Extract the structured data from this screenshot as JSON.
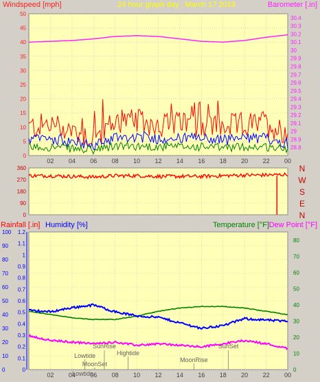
{
  "header": {
    "left_title": "Windspeed [mph]",
    "center_title": "24 hour graph day : March 17 2019",
    "right_title": "Barometer [.in]"
  },
  "colors": {
    "window_bg": "#d4d0c8",
    "plot_bg": "#ffffb8",
    "grid": "#c0c0c0",
    "wind_axis": "#ff2020",
    "baro_axis": "#ff20ff",
    "title": "#ffff00",
    "gust": "#ff0000",
    "avg": "#0000ff",
    "low": "#008000",
    "humidity": "#0000ff",
    "temperature": "#008000",
    "dew": "#ff00ff",
    "direction_axis": "#cc0000"
  },
  "time_axis": [
    "02",
    "04",
    "06",
    "08",
    "10",
    "12",
    "14",
    "16",
    "18",
    "20",
    "22",
    "00"
  ],
  "panel_wind": {
    "left_ticks": [
      "50",
      "45",
      "40",
      "35",
      "30",
      "25",
      "20",
      "15",
      "10",
      "5",
      "0"
    ],
    "right_ticks": [
      "30.4",
      "30.3",
      "30.2",
      "30.1",
      "30",
      "29.9",
      "29.8",
      "29.7",
      "29.6",
      "29.5",
      "29.4",
      "29.3",
      "29.2",
      "29.1",
      "29",
      "28.9",
      "28.8"
    ]
  },
  "panel_dir": {
    "ticks": [
      "360",
      "270",
      "180",
      "90",
      "0"
    ],
    "compass": [
      "N",
      "W",
      "S",
      "E",
      "N"
    ]
  },
  "panel_climate": {
    "left_labels": {
      "rain": "Rainfall [.in]",
      "humidity": "Humidity [%]"
    },
    "right_labels": {
      "temperature": "Temperature [°F]",
      "dew": "Dew Point [°F]"
    },
    "rain_ticks": [
      "1.2",
      "1.1",
      "1",
      "0.9",
      "0.8",
      "0.7",
      "0.6",
      "0.5",
      "0.4",
      "0.3",
      "0.2",
      "0.1",
      "0"
    ],
    "humidity_ticks": [
      "100",
      "90",
      "80",
      "70",
      "60",
      "50",
      "40",
      "30",
      "20",
      "10",
      "0"
    ],
    "temp_ticks": [
      "80",
      "70",
      "60",
      "50",
      "40",
      "30",
      "20",
      "10",
      "0"
    ],
    "events": {
      "lowtide_1": "Lowtide",
      "moonset": "MoonSet",
      "sunrise": "SunRise",
      "hightide": "Hightide",
      "moonrise": "MoonRise",
      "sunset": "SunSet",
      "lowtide_2": "Lowtide"
    }
  },
  "chart_data": [
    {
      "type": "line",
      "title": "24 hour graph day : March 17 2019",
      "xlabel": "",
      "x": [
        "00",
        "02",
        "04",
        "06",
        "08",
        "10",
        "12",
        "14",
        "16",
        "18",
        "20",
        "22",
        "24"
      ],
      "series": [
        {
          "name": "Windspeed [mph]",
          "axis": "left",
          "values": [
            10,
            11,
            9,
            6,
            12,
            12,
            11,
            11,
            11,
            10,
            11,
            11,
            8
          ]
        },
        {
          "name": "Barometer [.in]",
          "axis": "right",
          "values": [
            30.1,
            30.11,
            30.12,
            30.14,
            30.17,
            30.18,
            30.17,
            30.14,
            30.11,
            30.1,
            30.12,
            30.16,
            30.19
          ]
        }
      ],
      "left_ylim": [
        0,
        50
      ],
      "right_ylim": [
        28.7,
        30.45
      ],
      "ylabel": "Windspeed [mph]",
      "y2label": "Barometer [.in]"
    },
    {
      "type": "scatter",
      "title": "",
      "x": [
        "00",
        "02",
        "04",
        "06",
        "08",
        "10",
        "12",
        "14",
        "16",
        "18",
        "20",
        "22",
        "24"
      ],
      "series": [
        {
          "values": [
            300,
            300,
            295,
            290,
            300,
            300,
            295,
            295,
            295,
            300,
            305,
            305,
            310
          ]
        }
      ],
      "ylim": [
        0,
        360
      ]
    },
    {
      "type": "line",
      "title": "",
      "x": [
        "00",
        "02",
        "04",
        "06",
        "08",
        "10",
        "12",
        "14",
        "16",
        "18",
        "20",
        "22",
        "24"
      ],
      "series": [
        {
          "name": "Rainfall [.in]",
          "axis": "rain",
          "values": [
            0,
            0,
            0,
            0,
            0,
            0,
            0,
            0,
            0,
            0,
            0,
            0,
            0
          ]
        },
        {
          "name": "Humidity [%]",
          "axis": "left",
          "values": [
            43,
            42,
            45,
            47,
            42,
            39,
            38,
            34,
            30,
            32,
            37,
            36,
            35
          ]
        },
        {
          "name": "Temperature [°F]",
          "axis": "right",
          "values": [
            36,
            34,
            32,
            31,
            31,
            33,
            36,
            38,
            39,
            39,
            38,
            36,
            34
          ]
        },
        {
          "name": "Dew Point [°F]",
          "axis": "right",
          "values": [
            21,
            18,
            17,
            16,
            17,
            15,
            16,
            15,
            14,
            16,
            18,
            16,
            13
          ]
        }
      ],
      "rain_ylim": [
        0,
        1.2
      ],
      "left_ylim": [
        0,
        100
      ],
      "right_ylim": [
        0,
        85
      ]
    }
  ]
}
